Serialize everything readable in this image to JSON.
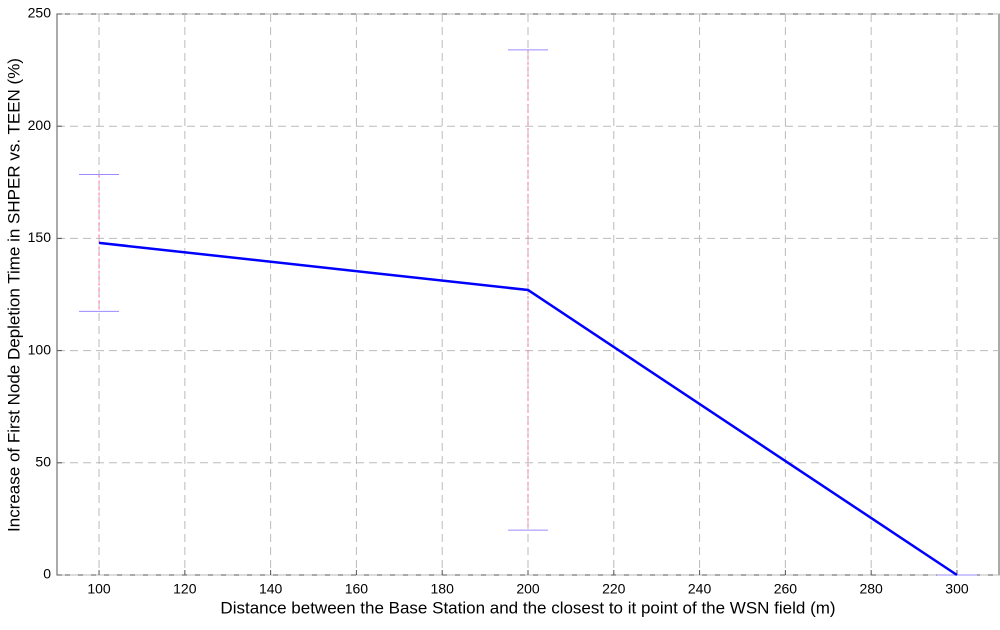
{
  "chart_data": {
    "type": "line",
    "x_label": "Distance between the Base Station and the closest to it point of the WSN field (m)",
    "y_label": "Increase of First Node Depletion Time in SHPER vs. TEEN (%)",
    "x": [
      100,
      200,
      300
    ],
    "series": [
      {
        "color": "#0000ff",
        "values": [
          148,
          127,
          0
        ],
        "errors": [
          30.5,
          107,
          0
        ]
      }
    ],
    "xlim": [
      90.2,
      309.8
    ],
    "xticks": [
      100,
      120,
      140,
      160,
      180,
      200,
      220,
      240,
      260,
      280,
      300
    ],
    "ylim": [
      0,
      250
    ],
    "yticks": [
      0,
      50,
      100,
      150,
      200,
      250
    ],
    "grid": true
  }
}
